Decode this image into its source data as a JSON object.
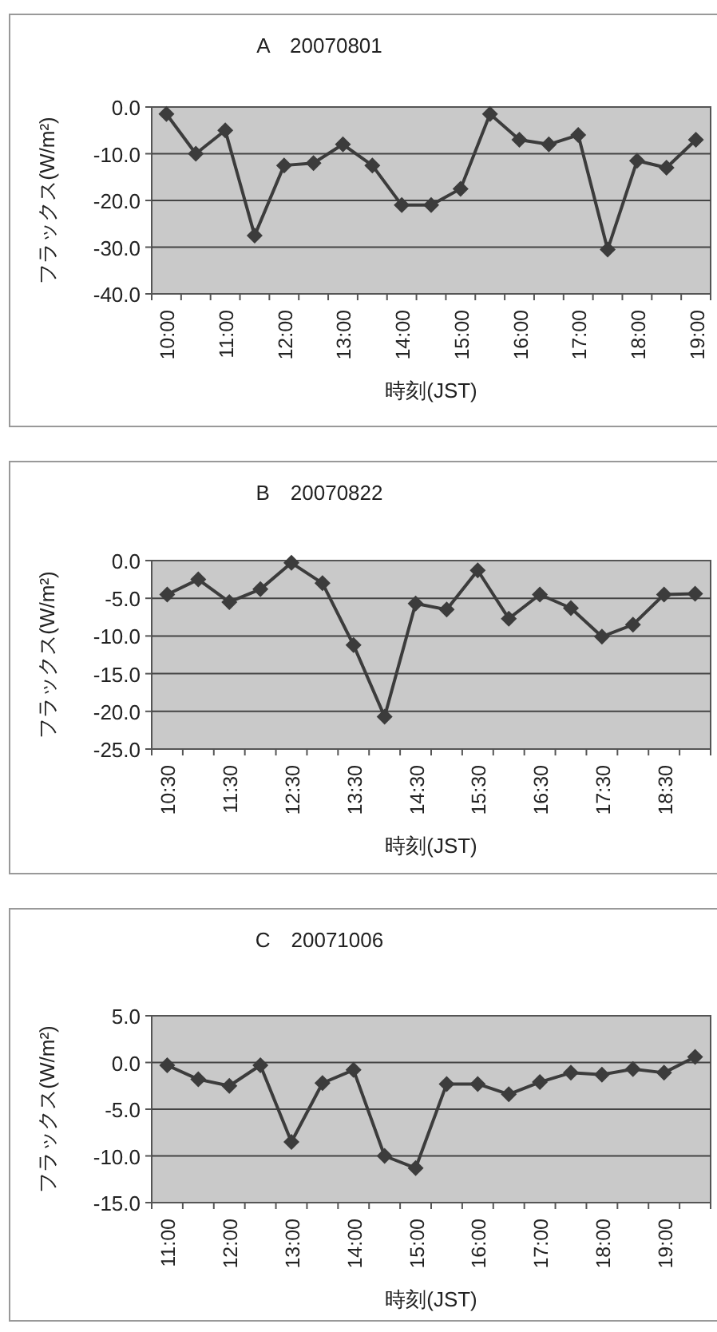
{
  "chart_data": [
    {
      "type": "line",
      "title": "A　20070801",
      "xlabel": "時刻(JST)",
      "ylabel": "フラックス(W/m²)",
      "categories": [
        "10:00",
        null,
        "11:00",
        null,
        "12:00",
        null,
        "13:00",
        null,
        "14:00",
        null,
        "15:00",
        null,
        "16:00",
        null,
        "17:00",
        null,
        "18:00",
        null,
        "19:00"
      ],
      "series": [
        {
          "color": "#3c3c3c",
          "values": [
            -1.5,
            -10,
            -5,
            -27.5,
            -12.5,
            -12,
            -8,
            -12.5,
            -21,
            -21,
            -17.5,
            -1.5,
            -7,
            -8,
            -6,
            -30.5,
            -11.5,
            -13,
            -7
          ]
        }
      ],
      "ylim": [
        -40,
        0
      ],
      "yticks": [
        {
          "value": -40,
          "label": "-40.0"
        },
        {
          "value": -30,
          "label": "-30.0"
        },
        {
          "value": -20,
          "label": "-20.0"
        },
        {
          "value": -10,
          "label": "-10.0"
        },
        {
          "value": 0,
          "label": "0.0"
        }
      ],
      "grid": "y",
      "marker": "diamond",
      "line_style": "solid"
    },
    {
      "type": "line",
      "title": "B　20070822",
      "xlabel": "時刻(JST)",
      "ylabel": "フラックス(W/m²)",
      "categories": [
        "10:30",
        null,
        "11:30",
        null,
        "12:30",
        null,
        "13:30",
        null,
        "14:30",
        null,
        "15:30",
        null,
        "16:30",
        null,
        "17:30",
        null,
        "18:30",
        null
      ],
      "series": [
        {
          "color": "#3c3c3c",
          "values": [
            -4.5,
            -2.5,
            -5.5,
            -3.8,
            -0.3,
            -3,
            -11.2,
            -20.7,
            -5.7,
            -6.5,
            -1.3,
            -7.7,
            -4.5,
            -6.3,
            -10.1,
            -8.5,
            -4.5,
            -4.4
          ]
        }
      ],
      "ylim": [
        -25,
        0
      ],
      "yticks": [
        {
          "value": -25,
          "label": "-25.0"
        },
        {
          "value": -20,
          "label": "-20.0"
        },
        {
          "value": -15,
          "label": "-15.0"
        },
        {
          "value": -10,
          "label": "-10.0"
        },
        {
          "value": -5,
          "label": "-5.0"
        },
        {
          "value": 0,
          "label": "0.0"
        }
      ],
      "grid": "y",
      "marker": "diamond",
      "line_style": "solid"
    },
    {
      "type": "line",
      "title": "C　20071006",
      "xlabel": "時刻(JST)",
      "ylabel": "フラックス(W/m²)",
      "categories": [
        "11:00",
        null,
        "12:00",
        null,
        "13:00",
        null,
        "14:00",
        null,
        "15:00",
        null,
        "16:00",
        null,
        "17:00",
        null,
        "18:00",
        null,
        "19:00",
        null
      ],
      "series": [
        {
          "color": "#3c3c3c",
          "values": [
            -0.3,
            -1.8,
            -2.5,
            -0.3,
            -8.5,
            -2.2,
            -0.8,
            -10,
            -11.3,
            -2.3,
            -2.3,
            -3.4,
            -2.1,
            -1.1,
            -1.3,
            -0.7,
            -1.1,
            0.6
          ]
        }
      ],
      "ylim": [
        -15,
        5
      ],
      "yticks": [
        {
          "value": -15,
          "label": "-15.0"
        },
        {
          "value": -10,
          "label": "-10.0"
        },
        {
          "value": -5,
          "label": "-5.0"
        },
        {
          "value": 0,
          "label": "0.0"
        },
        {
          "value": 5,
          "label": "5.0"
        }
      ],
      "grid": "y",
      "marker": "diamond",
      "line_style": "solid"
    }
  ]
}
